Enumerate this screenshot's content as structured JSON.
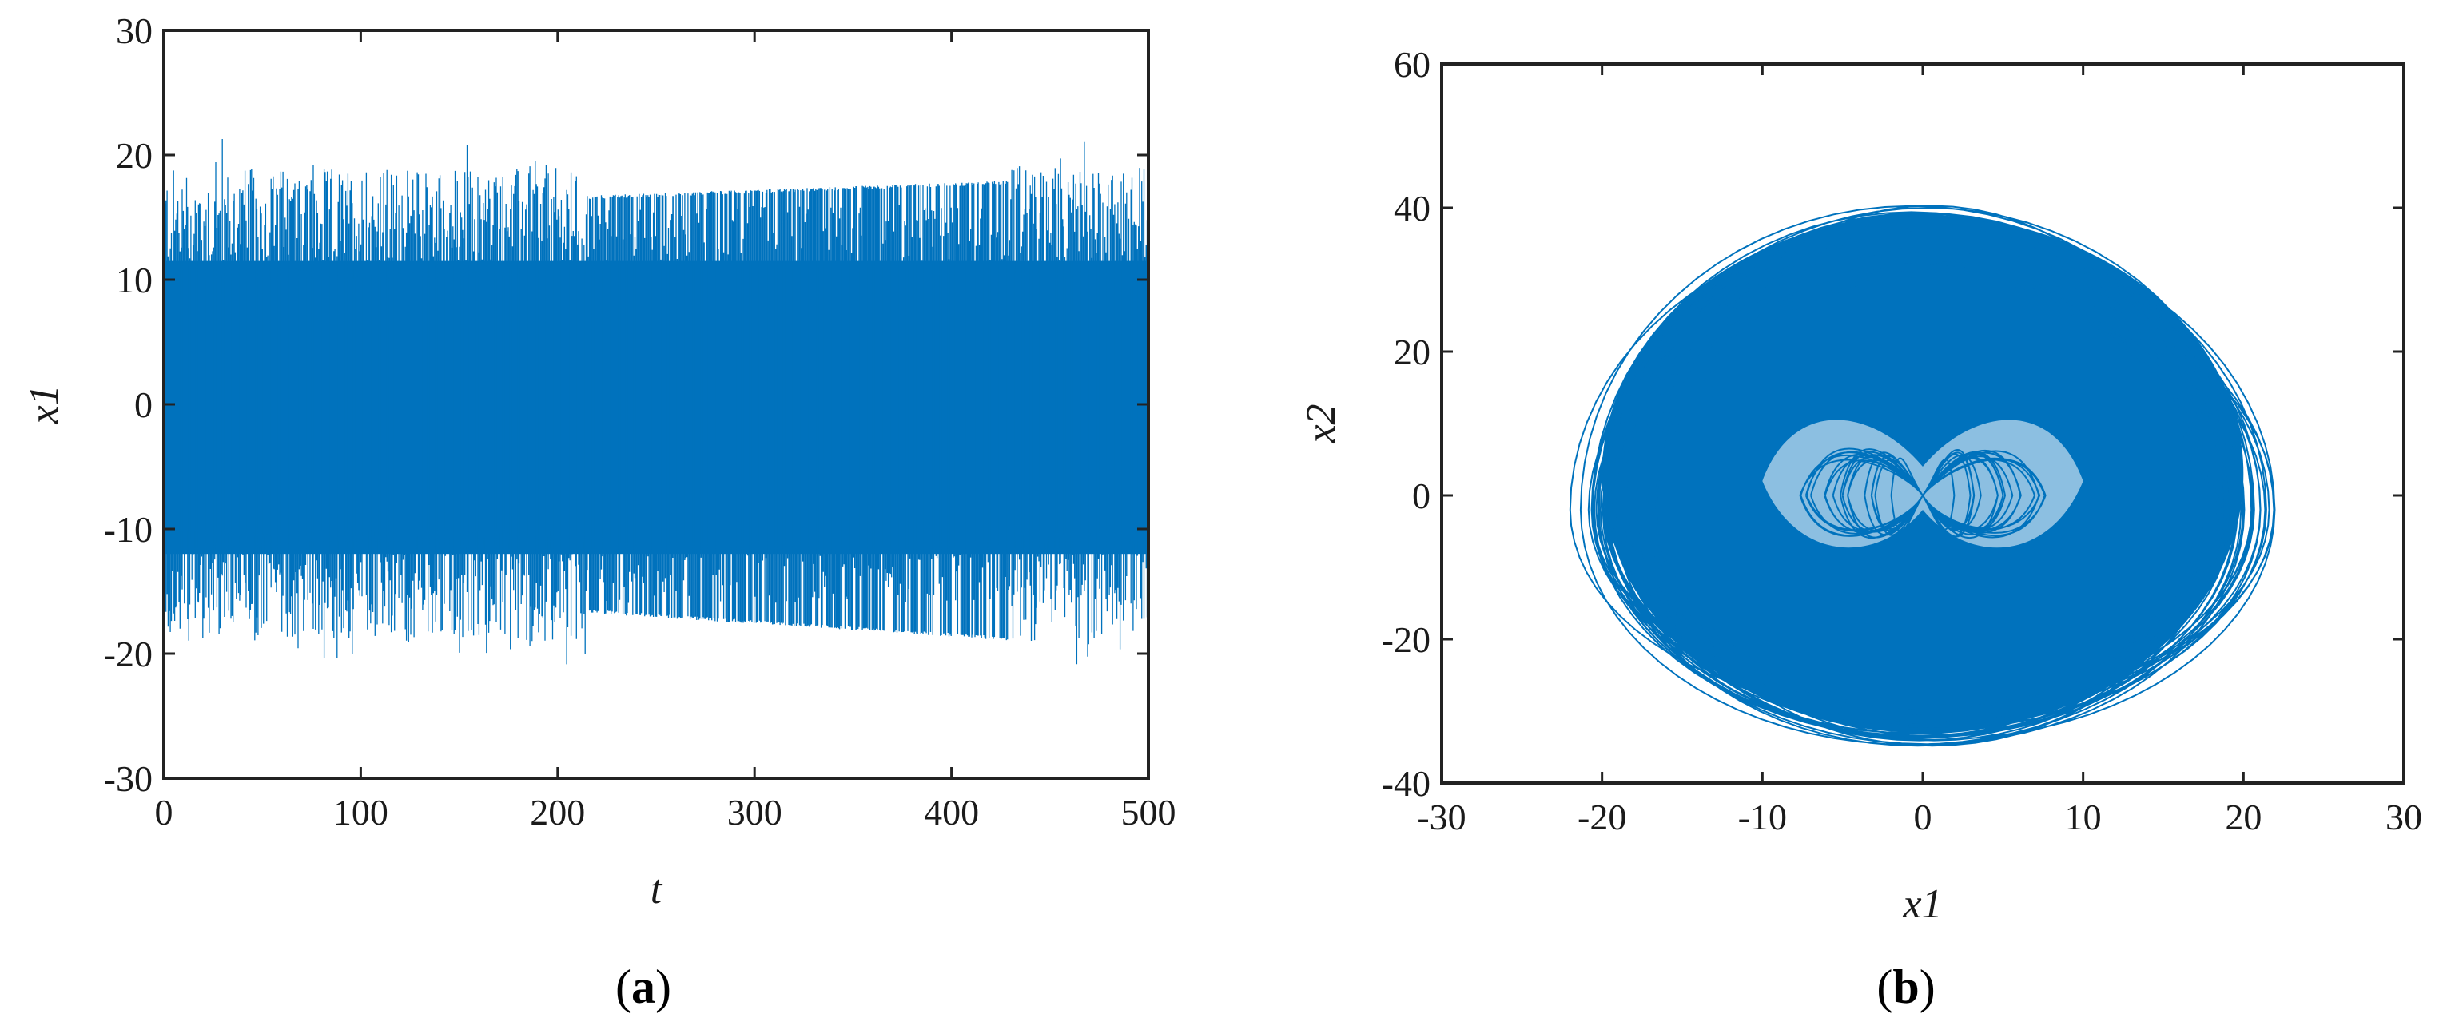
{
  "chart_data": [
    {
      "type": "line",
      "panel": "a",
      "caption": "a",
      "xlabel": "t",
      "ylabel": "x1",
      "xlim": [
        0,
        500
      ],
      "ylim": [
        -30,
        30
      ],
      "xticks": [
        "0",
        "100",
        "200",
        "300",
        "400",
        "500"
      ],
      "yticks": [
        "30",
        "20",
        "10",
        "0",
        "-10",
        "-20",
        "-30"
      ],
      "series_color": "#0072BD",
      "segments": [
        {
          "t": [
            0,
            215
          ],
          "min": -21,
          "max": 21.5,
          "regime": "chaotic"
        },
        {
          "t": [
            215,
            430
          ],
          "min_start": -17,
          "max_start": 17,
          "min_end": -19,
          "max_end": 18,
          "regime": "quasi-periodic"
        },
        {
          "t": [
            430,
            500
          ],
          "min": -20.5,
          "max": 21,
          "regime": "chaotic"
        }
      ]
    },
    {
      "type": "line",
      "panel": "b",
      "caption": "b",
      "xlabel": "x1",
      "ylabel": "x2",
      "xlim": [
        -30,
        30
      ],
      "ylim": [
        -40,
        60
      ],
      "xticks": [
        "-30",
        "-20",
        "-10",
        "0",
        "10",
        "20",
        "30"
      ],
      "yticks": [
        "60",
        "40",
        "20",
        "0",
        "-20",
        "-40"
      ],
      "series_color": "#0072BD",
      "attractor_extent": {
        "x1": [
          -21,
          21
        ],
        "x2": [
          -35,
          41
        ]
      }
    }
  ]
}
